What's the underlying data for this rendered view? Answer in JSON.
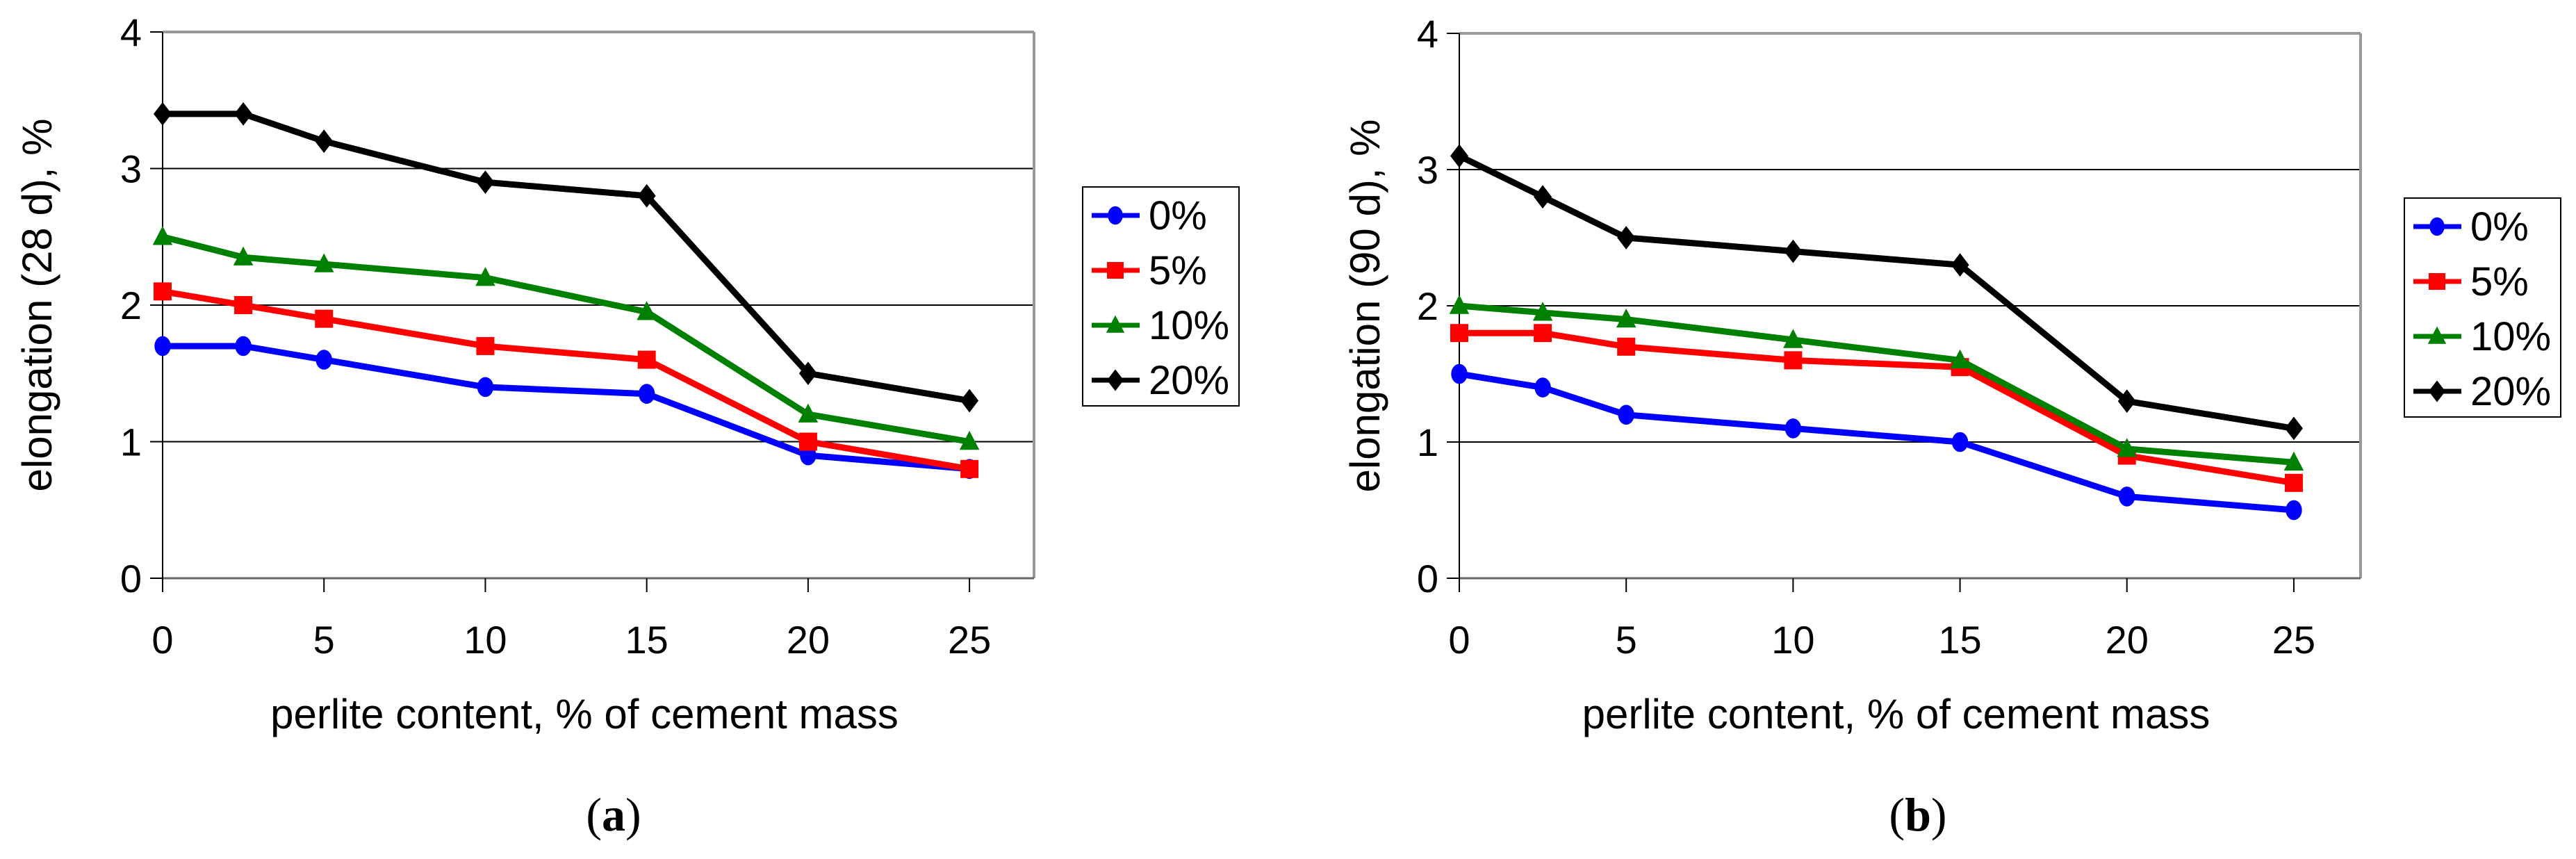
{
  "colors": {
    "0%": "#0000ff",
    "5%": "#ff0000",
    "10%": "#008000",
    "20%": "#000000"
  },
  "chart_data": [
    {
      "type": "line",
      "panel_label": "a",
      "xlabel": "perlite content, % of cement mass",
      "ylabel": "elongation (28 d), %",
      "xlim": [
        0,
        27
      ],
      "ylim": [
        0,
        4
      ],
      "xticks": [
        0,
        5,
        10,
        15,
        20,
        25
      ],
      "yticks": [
        0,
        1,
        2,
        3,
        4
      ],
      "grid": true,
      "legend_position": "right",
      "x": [
        0,
        2.5,
        5,
        10,
        15,
        20,
        25
      ],
      "series": [
        {
          "name": "0%",
          "marker": "circle",
          "values": [
            1.7,
            1.7,
            1.6,
            1.4,
            1.35,
            0.9,
            0.8
          ]
        },
        {
          "name": "5%",
          "marker": "square",
          "values": [
            2.1,
            2.0,
            1.9,
            1.7,
            1.6,
            1.0,
            0.8
          ]
        },
        {
          "name": "10%",
          "marker": "triangle",
          "values": [
            2.5,
            2.35,
            2.3,
            2.2,
            1.95,
            1.2,
            1.0
          ]
        },
        {
          "name": "20%",
          "marker": "diamond",
          "values": [
            3.4,
            3.4,
            3.2,
            2.9,
            2.8,
            1.5,
            1.3
          ]
        }
      ]
    },
    {
      "type": "line",
      "panel_label": "b",
      "xlabel": "perlite content, % of cement mass",
      "ylabel": "elongation (90 d), %",
      "xlim": [
        0,
        27
      ],
      "ylim": [
        0,
        4
      ],
      "xticks": [
        0,
        5,
        10,
        15,
        20,
        25
      ],
      "yticks": [
        0,
        1,
        2,
        3,
        4
      ],
      "grid": true,
      "legend_position": "right",
      "x": [
        0,
        2.5,
        5,
        10,
        15,
        20,
        25
      ],
      "series": [
        {
          "name": "0%",
          "marker": "circle",
          "values": [
            1.5,
            1.4,
            1.2,
            1.1,
            1.0,
            0.6,
            0.5
          ]
        },
        {
          "name": "5%",
          "marker": "square",
          "values": [
            1.8,
            1.8,
            1.7,
            1.6,
            1.55,
            0.9,
            0.7
          ]
        },
        {
          "name": "10%",
          "marker": "triangle",
          "values": [
            2.0,
            1.95,
            1.9,
            1.75,
            1.6,
            0.95,
            0.85
          ]
        },
        {
          "name": "20%",
          "marker": "diamond",
          "values": [
            3.1,
            2.8,
            2.5,
            2.4,
            2.3,
            1.3,
            1.1
          ]
        }
      ]
    }
  ]
}
